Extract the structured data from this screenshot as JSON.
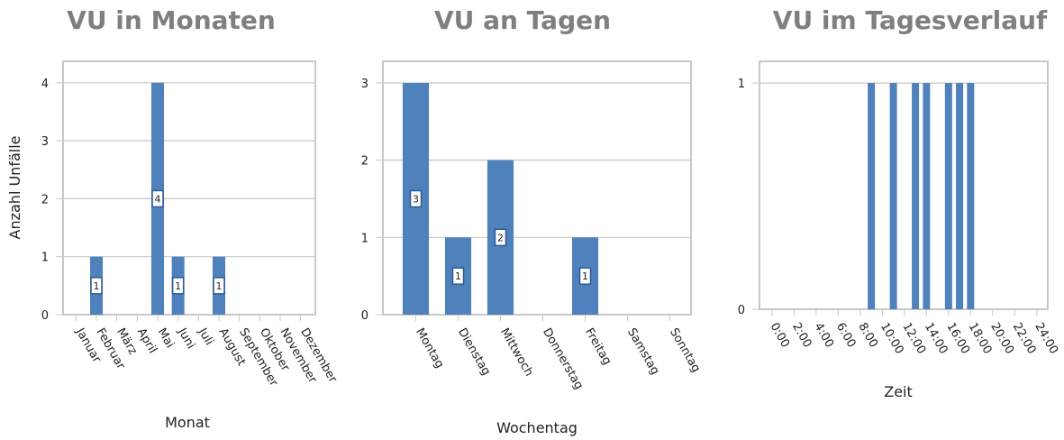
{
  "chart_data": [
    {
      "type": "bar",
      "title": "VU in Monaten",
      "xlabel": "Monat",
      "ylabel": "Anzahl Unfälle",
      "categories": [
        "Januar",
        "Februar",
        "März",
        "April",
        "Mai",
        "Juni",
        "Juli",
        "August",
        "September",
        "Oktober",
        "November",
        "Dezember"
      ],
      "values": [
        0,
        1,
        0,
        0,
        4,
        1,
        0,
        1,
        0,
        0,
        0,
        0
      ],
      "color": "#4f81bd",
      "data_labels": true,
      "ylim": [
        0,
        4.37
      ],
      "yticks": [
        0,
        1,
        2,
        3,
        4
      ],
      "grid": true
    },
    {
      "type": "bar",
      "title": "VU an Tagen",
      "xlabel": "Wochentag",
      "categories": [
        "Montag",
        "Dienstag",
        "Mittwoch",
        "Donnerstag",
        "Freitag",
        "Samstag",
        "Sonntag"
      ],
      "values": [
        3,
        1,
        2,
        0,
        1,
        0,
        0
      ],
      "color": "#4f81bd",
      "data_labels": true,
      "ylim": [
        0,
        3.28
      ],
      "yticks": [
        0,
        1,
        2,
        3
      ],
      "grid": true
    },
    {
      "type": "bar",
      "title": "VU im Tagesverlauf",
      "xlabel": "Zeit",
      "x": [
        9,
        11,
        13,
        14,
        16,
        17,
        18
      ],
      "values": [
        1,
        1,
        1,
        1,
        1,
        1,
        1
      ],
      "color": "#4f81bd",
      "data_labels": false,
      "xlim": [
        -1.14,
        25
      ],
      "xticks": [
        {
          "value": 0,
          "label": "0:00"
        },
        {
          "value": 2,
          "label": "2:00"
        },
        {
          "value": 4,
          "label": "4:00"
        },
        {
          "value": 6,
          "label": "6:00"
        },
        {
          "value": 8,
          "label": "8:00"
        },
        {
          "value": 10,
          "label": "10:00"
        },
        {
          "value": 12,
          "label": "12:00"
        },
        {
          "value": 14,
          "label": "14:00"
        },
        {
          "value": 16,
          "label": "16:00"
        },
        {
          "value": 18,
          "label": "18:00"
        },
        {
          "value": 20,
          "label": "20:00"
        },
        {
          "value": 22,
          "label": "22:00"
        },
        {
          "value": 24,
          "label": "24:00"
        }
      ],
      "ylim": [
        0,
        1.096
      ],
      "yticks": [
        0,
        1
      ],
      "grid": true
    }
  ]
}
